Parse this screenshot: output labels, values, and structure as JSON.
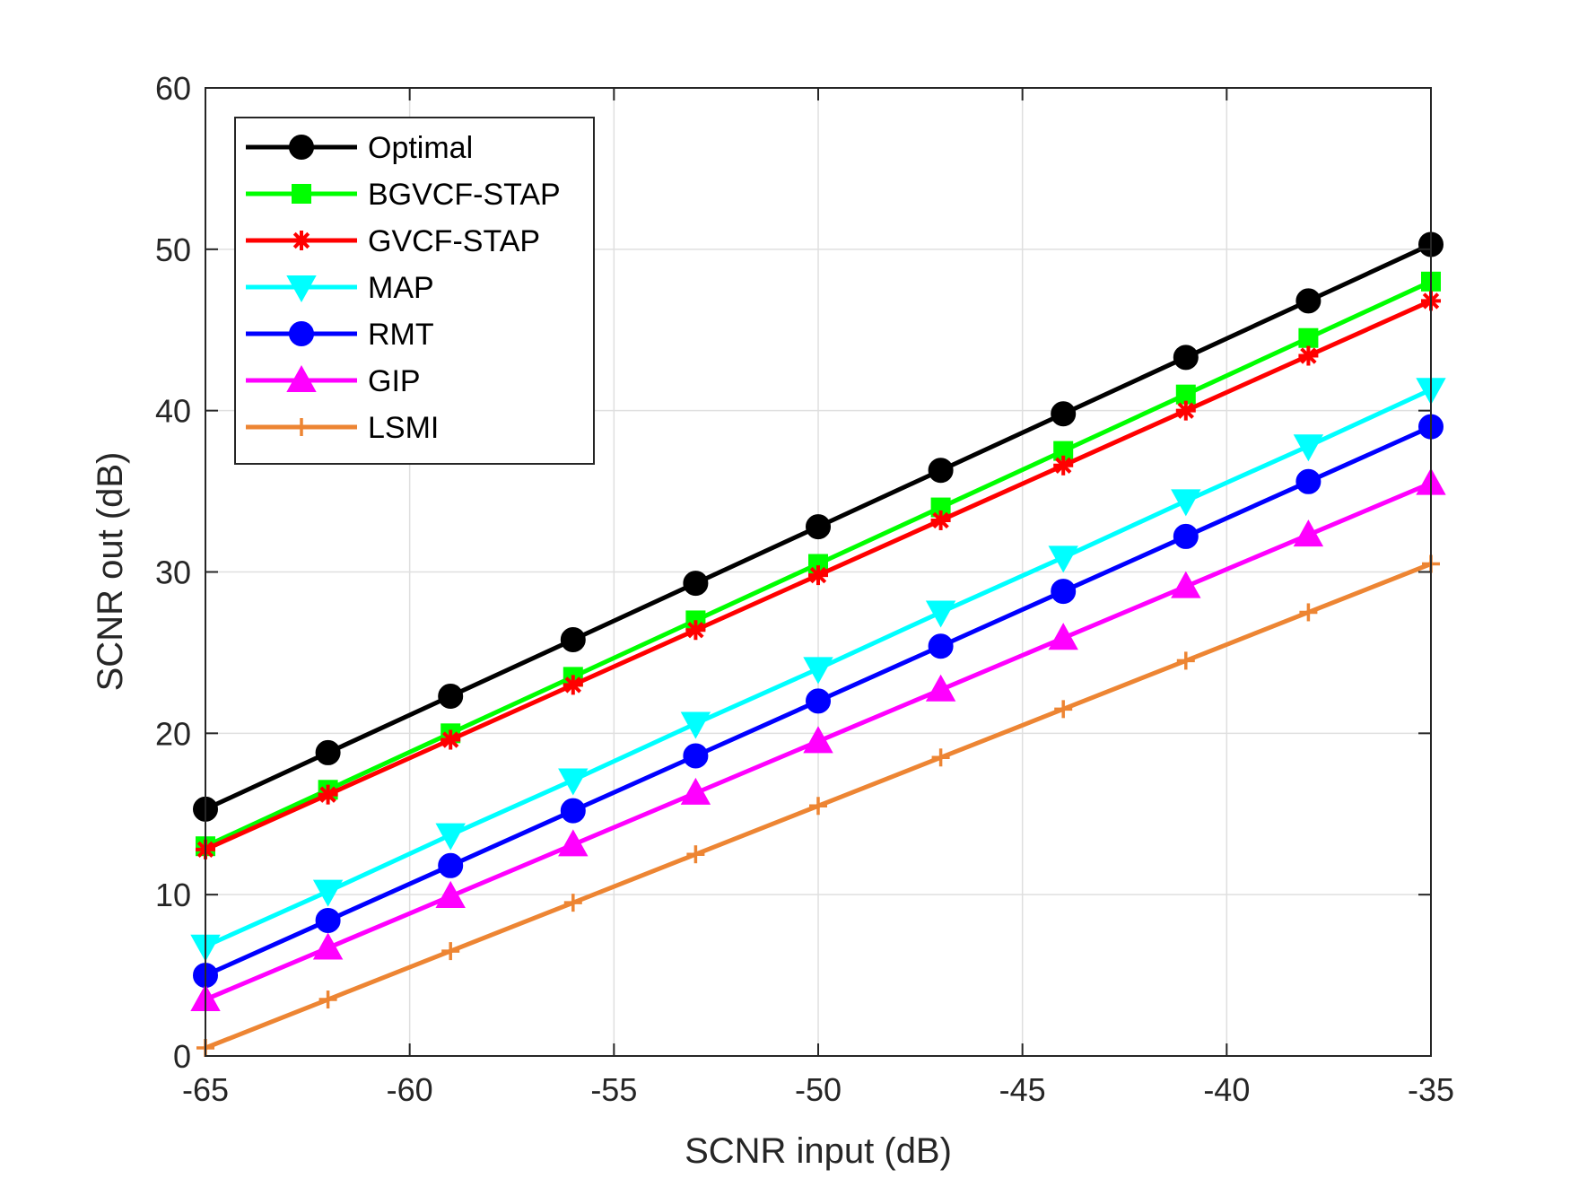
{
  "chart_data": {
    "type": "line",
    "xlabel": "SCNR input (dB)",
    "ylabel": "SCNR out (dB)",
    "xlim": [
      -65,
      -35
    ],
    "ylim": [
      0,
      60
    ],
    "xticks": [
      -65,
      -60,
      -55,
      -50,
      -45,
      -40,
      -35
    ],
    "yticks": [
      0,
      10,
      20,
      30,
      40,
      50,
      60
    ],
    "grid": true,
    "legend_position": "top-left",
    "x": [
      -65,
      -62,
      -59,
      -56,
      -53,
      -50,
      -47,
      -44,
      -41,
      -38,
      -35
    ],
    "series": [
      {
        "name": "Optimal",
        "color": "#000000",
        "marker": "circle",
        "values": [
          15.3,
          18.8,
          22.3,
          25.8,
          29.3,
          32.8,
          36.3,
          39.8,
          43.3,
          46.8,
          50.3
        ]
      },
      {
        "name": "BGVCF-STAP",
        "color": "#00ff00",
        "marker": "square",
        "values": [
          13.0,
          16.5,
          20.0,
          23.5,
          27.0,
          30.5,
          34.0,
          37.5,
          41.0,
          44.5,
          48.0
        ]
      },
      {
        "name": "GVCF-STAP",
        "color": "#ff0000",
        "marker": "asterisk",
        "values": [
          12.8,
          16.2,
          19.6,
          23.0,
          26.4,
          29.8,
          33.2,
          36.6,
          40.0,
          43.4,
          46.8
        ]
      },
      {
        "name": "MAP",
        "color": "#00ffff",
        "marker": "triangle-down",
        "values": [
          6.8,
          10.2,
          13.7,
          17.1,
          20.6,
          24.0,
          27.5,
          30.9,
          34.4,
          37.8,
          41.3
        ]
      },
      {
        "name": "RMT",
        "color": "#0000ff",
        "marker": "circle",
        "values": [
          5.0,
          8.4,
          11.8,
          15.2,
          18.6,
          22.0,
          25.4,
          28.8,
          32.2,
          35.6,
          39.0
        ]
      },
      {
        "name": "GIP",
        "color": "#ff00ff",
        "marker": "triangle-up",
        "values": [
          3.5,
          6.7,
          9.9,
          13.1,
          16.3,
          19.5,
          22.7,
          25.9,
          29.1,
          32.3,
          35.5
        ]
      },
      {
        "name": "LSMI",
        "color": "#ed8533",
        "marker": "plus",
        "values": [
          0.5,
          3.5,
          6.5,
          9.5,
          12.5,
          15.5,
          18.5,
          21.5,
          24.5,
          27.5,
          30.5
        ]
      }
    ]
  }
}
